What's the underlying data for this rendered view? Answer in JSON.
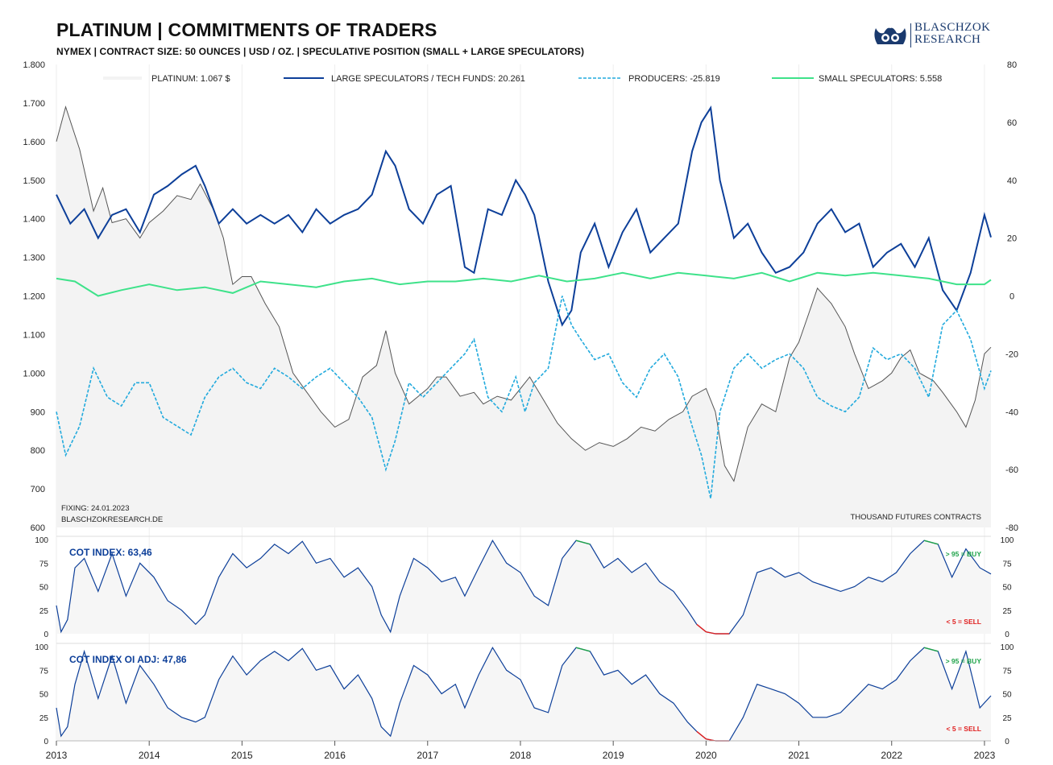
{
  "header": {
    "title": "PLATINUM | COMMITMENTS OF TRADERS",
    "subtitle": "NYMEX | CONTRACT SIZE: 50 OUNCES | USD / OZ. | SPECULATIVE POSITION (SMALL + LARGE SPECULATORS)"
  },
  "logo": {
    "line1": "BLASCHZOK",
    "line2": "RESEARCH"
  },
  "colors": {
    "platinum": "#555555",
    "large_speculators": "#0d3f99",
    "producers": "#22aadd",
    "small_speculators": "#3ee28a",
    "cot_buy": "#1fa34a",
    "cot_sell": "#e02020",
    "cot_line": "#0d3f99"
  },
  "chart_data": [
    {
      "type": "line",
      "name": "main",
      "x_labels": [
        "2013",
        "2014",
        "2015",
        "2016",
        "2017",
        "2018",
        "2019",
        "2020",
        "2021",
        "2022",
        "2023"
      ],
      "x_range": [
        2013.0,
        2023.07
      ],
      "y_left": {
        "ylim": [
          600,
          1800
        ],
        "ticks": [
          "600",
          "700",
          "800",
          "900",
          "1.000",
          "1.100",
          "1.200",
          "1.300",
          "1.400",
          "1.500",
          "1.600",
          "1.700",
          "1.800"
        ]
      },
      "y_right": {
        "ylim": [
          -80,
          80
        ],
        "ticks": [
          "-80",
          "-60",
          "-40",
          "-20",
          "0",
          "20",
          "40",
          "60",
          "80"
        ]
      },
      "legend": [
        "PLATINUM: 1.067 $",
        "LARGE SPECULATORS / TECH FUNDS: 20.261",
        "PRODUCERS: -25.819",
        "SMALL SPECULATORS: 5.558"
      ],
      "legend_position": "top",
      "annotation_left": [
        "FIXING: 24.01.2023",
        "BLASCHZOKRESEARCH.DE"
      ],
      "annotation_right": "THOUSAND  FUTURES  CONTRACTS",
      "series": [
        {
          "name": "PLATINUM",
          "axis": "left",
          "x": [
            2013.0,
            2013.1,
            2013.25,
            2013.4,
            2013.5,
            2013.6,
            2013.75,
            2013.9,
            2014.0,
            2014.15,
            2014.3,
            2014.45,
            2014.55,
            2014.7,
            2014.8,
            2014.9,
            2015.0,
            2015.1,
            2015.25,
            2015.4,
            2015.55,
            2015.7,
            2015.85,
            2016.0,
            2016.15,
            2016.3,
            2016.45,
            2016.55,
            2016.65,
            2016.8,
            2016.9,
            2017.0,
            2017.1,
            2017.2,
            2017.35,
            2017.5,
            2017.6,
            2017.75,
            2017.9,
            2018.0,
            2018.1,
            2018.25,
            2018.4,
            2018.55,
            2018.7,
            2018.85,
            2019.0,
            2019.15,
            2019.3,
            2019.45,
            2019.6,
            2019.75,
            2019.85,
            2020.0,
            2020.1,
            2020.2,
            2020.3,
            2020.45,
            2020.6,
            2020.75,
            2020.9,
            2021.0,
            2021.1,
            2021.2,
            2021.35,
            2021.5,
            2021.6,
            2021.75,
            2021.9,
            2022.0,
            2022.1,
            2022.2,
            2022.3,
            2022.45,
            2022.55,
            2022.7,
            2022.8,
            2022.9,
            2023.0,
            2023.07
          ],
          "y": [
            1600,
            1690,
            1580,
            1420,
            1480,
            1390,
            1400,
            1350,
            1390,
            1420,
            1460,
            1450,
            1490,
            1420,
            1350,
            1230,
            1250,
            1250,
            1180,
            1120,
            1000,
            950,
            900,
            860,
            880,
            990,
            1020,
            1110,
            1000,
            920,
            940,
            960,
            990,
            990,
            940,
            950,
            920,
            940,
            930,
            960,
            990,
            930,
            870,
            830,
            800,
            820,
            810,
            830,
            860,
            850,
            880,
            900,
            940,
            960,
            900,
            760,
            720,
            860,
            920,
            900,
            1040,
            1080,
            1150,
            1220,
            1180,
            1120,
            1050,
            960,
            980,
            1000,
            1040,
            1060,
            1000,
            980,
            950,
            900,
            860,
            930,
            1050,
            1067
          ]
        },
        {
          "name": "LARGE SPECULATORS / TECH FUNDS",
          "axis": "right",
          "x": [
            2013.0,
            2013.15,
            2013.3,
            2013.45,
            2013.6,
            2013.75,
            2013.9,
            2014.05,
            2014.2,
            2014.35,
            2014.5,
            2014.6,
            2014.75,
            2014.9,
            2015.05,
            2015.2,
            2015.35,
            2015.5,
            2015.65,
            2015.8,
            2015.95,
            2016.1,
            2016.25,
            2016.4,
            2016.55,
            2016.65,
            2016.8,
            2016.95,
            2017.1,
            2017.25,
            2017.4,
            2017.5,
            2017.65,
            2017.8,
            2017.95,
            2018.05,
            2018.15,
            2018.3,
            2018.45,
            2018.55,
            2018.65,
            2018.8,
            2018.95,
            2019.1,
            2019.25,
            2019.4,
            2019.55,
            2019.7,
            2019.85,
            2019.95,
            2020.05,
            2020.15,
            2020.3,
            2020.45,
            2020.6,
            2020.75,
            2020.9,
            2021.05,
            2021.2,
            2021.35,
            2021.5,
            2021.65,
            2021.8,
            2021.95,
            2022.1,
            2022.25,
            2022.4,
            2022.55,
            2022.7,
            2022.85,
            2023.0,
            2023.07
          ],
          "y": [
            35,
            25,
            30,
            20,
            28,
            30,
            22,
            35,
            38,
            42,
            45,
            38,
            25,
            30,
            25,
            28,
            25,
            28,
            22,
            30,
            25,
            28,
            30,
            35,
            50,
            45,
            30,
            25,
            35,
            38,
            10,
            8,
            30,
            28,
            40,
            35,
            28,
            5,
            -10,
            -5,
            15,
            25,
            10,
            22,
            30,
            15,
            20,
            25,
            50,
            60,
            65,
            40,
            20,
            25,
            15,
            8,
            10,
            15,
            25,
            30,
            22,
            25,
            10,
            15,
            18,
            10,
            20,
            2,
            -5,
            8,
            28,
            20.261
          ]
        },
        {
          "name": "PRODUCERS",
          "axis": "right",
          "x": [
            2013.0,
            2013.1,
            2013.25,
            2013.4,
            2013.55,
            2013.7,
            2013.85,
            2014.0,
            2014.15,
            2014.3,
            2014.45,
            2014.6,
            2014.75,
            2014.9,
            2015.05,
            2015.2,
            2015.35,
            2015.5,
            2015.65,
            2015.8,
            2015.95,
            2016.1,
            2016.25,
            2016.4,
            2016.55,
            2016.65,
            2016.8,
            2016.95,
            2017.1,
            2017.25,
            2017.4,
            2017.5,
            2017.65,
            2017.8,
            2017.95,
            2018.05,
            2018.15,
            2018.3,
            2018.45,
            2018.55,
            2018.65,
            2018.8,
            2018.95,
            2019.1,
            2019.25,
            2019.4,
            2019.55,
            2019.7,
            2019.85,
            2019.95,
            2020.05,
            2020.15,
            2020.3,
            2020.45,
            2020.6,
            2020.75,
            2020.9,
            2021.05,
            2021.2,
            2021.35,
            2021.5,
            2021.65,
            2021.8,
            2021.95,
            2022.1,
            2022.25,
            2022.4,
            2022.55,
            2022.7,
            2022.85,
            2023.0,
            2023.07
          ],
          "y": [
            -40,
            -55,
            -45,
            -25,
            -35,
            -38,
            -30,
            -30,
            -42,
            -45,
            -48,
            -35,
            -28,
            -25,
            -30,
            -32,
            -25,
            -28,
            -32,
            -28,
            -25,
            -30,
            -35,
            -42,
            -60,
            -50,
            -30,
            -35,
            -30,
            -25,
            -20,
            -15,
            -35,
            -40,
            -28,
            -40,
            -30,
            -25,
            0,
            -10,
            -15,
            -22,
            -20,
            -30,
            -35,
            -25,
            -20,
            -28,
            -45,
            -55,
            -70,
            -40,
            -25,
            -20,
            -25,
            -22,
            -20,
            -25,
            -35,
            -38,
            -40,
            -35,
            -18,
            -22,
            -20,
            -25,
            -35,
            -10,
            -5,
            -15,
            -32,
            -25.819
          ]
        },
        {
          "name": "SMALL SPECULATORS",
          "axis": "right",
          "x": [
            2013.0,
            2013.2,
            2013.45,
            2013.7,
            2014.0,
            2014.3,
            2014.6,
            2014.9,
            2015.2,
            2015.5,
            2015.8,
            2016.1,
            2016.4,
            2016.7,
            2017.0,
            2017.3,
            2017.6,
            2017.9,
            2018.2,
            2018.5,
            2018.8,
            2019.1,
            2019.4,
            2019.7,
            2020.0,
            2020.3,
            2020.6,
            2020.9,
            2021.2,
            2021.5,
            2021.8,
            2022.1,
            2022.4,
            2022.7,
            2023.0,
            2023.07
          ],
          "y": [
            6,
            5,
            0,
            2,
            4,
            2,
            3,
            1,
            5,
            4,
            3,
            5,
            6,
            4,
            5,
            5,
            6,
            5,
            7,
            5,
            6,
            8,
            6,
            8,
            7,
            6,
            8,
            5,
            8,
            7,
            8,
            7,
            6,
            4,
            4,
            5.558
          ]
        }
      ]
    },
    {
      "type": "line",
      "name": "cot_index",
      "label": "COT INDEX: 63,46",
      "ylim": [
        0,
        100
      ],
      "y_ticks": [
        "0",
        "25",
        "50",
        "75",
        "100"
      ],
      "buy_label": "> 95 = BUY",
      "sell_label": "< 5 = SELL",
      "x": [
        2013.0,
        2013.05,
        2013.12,
        2013.2,
        2013.3,
        2013.45,
        2013.6,
        2013.75,
        2013.9,
        2014.05,
        2014.2,
        2014.35,
        2014.5,
        2014.6,
        2014.75,
        2014.9,
        2015.05,
        2015.2,
        2015.35,
        2015.5,
        2015.65,
        2015.8,
        2015.95,
        2016.1,
        2016.25,
        2016.4,
        2016.5,
        2016.6,
        2016.7,
        2016.85,
        2017.0,
        2017.15,
        2017.3,
        2017.4,
        2017.55,
        2017.7,
        2017.85,
        2018.0,
        2018.15,
        2018.3,
        2018.45,
        2018.6,
        2018.75,
        2018.9,
        2019.05,
        2019.2,
        2019.35,
        2019.5,
        2019.65,
        2019.8,
        2019.9,
        2020.0,
        2020.1,
        2020.15,
        2020.25,
        2020.4,
        2020.55,
        2020.7,
        2020.85,
        2021.0,
        2021.15,
        2021.3,
        2021.45,
        2021.6,
        2021.75,
        2021.9,
        2022.05,
        2022.2,
        2022.35,
        2022.5,
        2022.65,
        2022.8,
        2022.95,
        2023.07
      ],
      "y": [
        30,
        2,
        15,
        70,
        80,
        45,
        85,
        40,
        75,
        60,
        35,
        25,
        10,
        20,
        60,
        85,
        70,
        80,
        95,
        85,
        98,
        75,
        80,
        60,
        70,
        50,
        20,
        2,
        40,
        80,
        70,
        55,
        60,
        40,
        70,
        99,
        75,
        65,
        40,
        30,
        80,
        99,
        95,
        70,
        80,
        65,
        75,
        55,
        45,
        25,
        10,
        2,
        0,
        0,
        0,
        20,
        65,
        70,
        60,
        65,
        55,
        50,
        45,
        50,
        60,
        55,
        65,
        85,
        99,
        95,
        60,
        90,
        70,
        63.46
      ]
    },
    {
      "type": "line",
      "name": "cot_index_oi_adj",
      "label": "COT INDEX OI ADJ: 47,86",
      "ylim": [
        0,
        100
      ],
      "y_ticks": [
        "0",
        "25",
        "50",
        "75",
        "100"
      ],
      "buy_label": "> 95 = BUY",
      "sell_label": "< 5 = SELL",
      "x": [
        2013.0,
        2013.05,
        2013.12,
        2013.2,
        2013.3,
        2013.45,
        2013.6,
        2013.75,
        2013.9,
        2014.05,
        2014.2,
        2014.35,
        2014.5,
        2014.6,
        2014.75,
        2014.9,
        2015.05,
        2015.2,
        2015.35,
        2015.5,
        2015.65,
        2015.8,
        2015.95,
        2016.1,
        2016.25,
        2016.4,
        2016.5,
        2016.6,
        2016.7,
        2016.85,
        2017.0,
        2017.15,
        2017.3,
        2017.4,
        2017.55,
        2017.7,
        2017.85,
        2018.0,
        2018.15,
        2018.3,
        2018.45,
        2018.6,
        2018.75,
        2018.9,
        2019.05,
        2019.2,
        2019.35,
        2019.5,
        2019.65,
        2019.8,
        2019.9,
        2020.0,
        2020.1,
        2020.15,
        2020.25,
        2020.4,
        2020.55,
        2020.7,
        2020.85,
        2021.0,
        2021.15,
        2021.3,
        2021.45,
        2021.6,
        2021.75,
        2021.9,
        2022.05,
        2022.2,
        2022.35,
        2022.5,
        2022.65,
        2022.8,
        2022.95,
        2023.07
      ],
      "y": [
        35,
        5,
        15,
        60,
        95,
        45,
        90,
        40,
        80,
        60,
        35,
        25,
        20,
        25,
        65,
        90,
        70,
        85,
        95,
        85,
        98,
        75,
        80,
        55,
        70,
        45,
        15,
        5,
        40,
        80,
        70,
        50,
        60,
        35,
        70,
        99,
        75,
        65,
        35,
        30,
        80,
        99,
        95,
        70,
        75,
        60,
        70,
        50,
        40,
        20,
        10,
        2,
        0,
        0,
        0,
        25,
        60,
        55,
        50,
        40,
        25,
        25,
        30,
        45,
        60,
        55,
        65,
        85,
        99,
        95,
        55,
        95,
        35,
        47.86
      ]
    }
  ]
}
